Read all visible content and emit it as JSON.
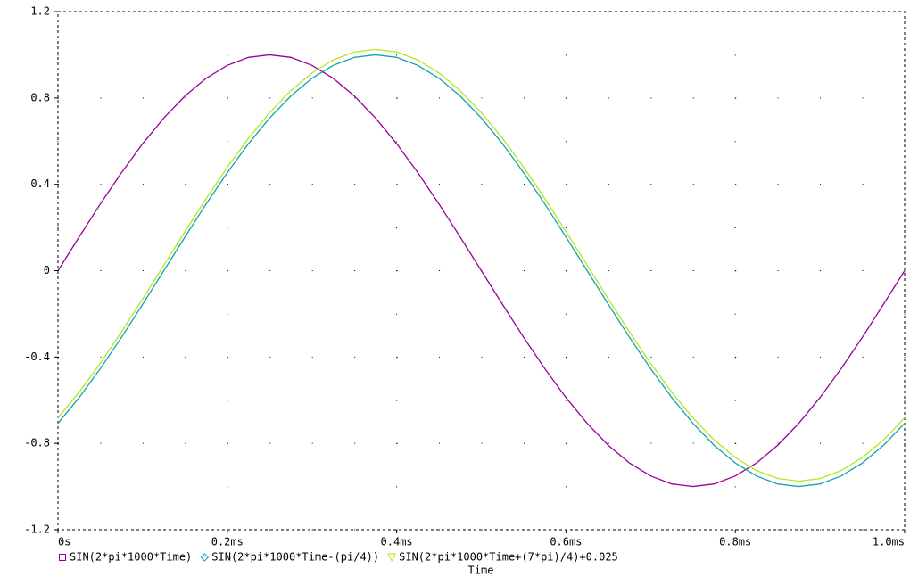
{
  "chart_data": {
    "type": "line",
    "xlabel": "Time",
    "x": [
      0,
      0.025,
      0.05,
      0.075,
      0.1,
      0.125,
      0.15,
      0.175,
      0.2,
      0.225,
      0.25,
      0.275,
      0.3,
      0.325,
      0.35,
      0.375,
      0.4,
      0.425,
      0.45,
      0.475,
      0.5,
      0.525,
      0.55,
      0.575,
      0.6,
      0.625,
      0.65,
      0.675,
      0.7,
      0.725,
      0.75,
      0.775,
      0.8,
      0.825,
      0.85,
      0.875,
      0.9,
      0.925,
      0.95,
      0.975,
      1
    ],
    "series": [
      {
        "name": "SIN(2*pi*1000*Time)",
        "color": "#990099",
        "marker": "square",
        "values": [
          0,
          0.156,
          0.309,
          0.454,
          0.588,
          0.707,
          0.809,
          0.891,
          0.951,
          0.988,
          1,
          0.988,
          0.951,
          0.891,
          0.809,
          0.707,
          0.588,
          0.454,
          0.309,
          0.156,
          0,
          -0.156,
          -0.309,
          -0.454,
          -0.588,
          -0.707,
          -0.809,
          -0.891,
          -0.951,
          -0.988,
          -1,
          -0.988,
          -0.951,
          -0.891,
          -0.809,
          -0.707,
          -0.588,
          -0.454,
          -0.309,
          -0.156,
          0
        ]
      },
      {
        "name": "SIN(2*pi*1000*Time-(pi/4))",
        "color": "#12a3b0",
        "marker": "diamond",
        "values": [
          -0.707,
          -0.588,
          -0.454,
          -0.309,
          -0.156,
          0,
          0.156,
          0.309,
          0.454,
          0.588,
          0.707,
          0.809,
          0.891,
          0.951,
          0.988,
          1,
          0.988,
          0.951,
          0.891,
          0.809,
          0.707,
          0.588,
          0.454,
          0.309,
          0.156,
          0,
          -0.156,
          -0.309,
          -0.454,
          -0.588,
          -0.707,
          -0.809,
          -0.891,
          -0.951,
          -0.988,
          -1,
          -0.988,
          -0.951,
          -0.891,
          -0.809,
          -0.707
        ]
      },
      {
        "name": "SIN(2*pi*1000*Time+(7*pi)/4)+0.025",
        "color": "#b4e61e",
        "marker": "triangle",
        "values": [
          -0.682,
          -0.563,
          -0.429,
          -0.284,
          -0.131,
          0.025,
          0.181,
          0.334,
          0.479,
          0.613,
          0.732,
          0.834,
          0.916,
          0.976,
          1.013,
          1.025,
          1.013,
          0.976,
          0.916,
          0.834,
          0.732,
          0.613,
          0.479,
          0.334,
          0.181,
          0.025,
          -0.131,
          -0.284,
          -0.429,
          -0.563,
          -0.682,
          -0.784,
          -0.866,
          -0.926,
          -0.963,
          -0.975,
          -0.963,
          -0.926,
          -0.866,
          -0.784,
          -0.682
        ]
      }
    ],
    "xlim": [
      0,
      1
    ],
    "xticks": [
      {
        "value": 0,
        "label": "0s"
      },
      {
        "value": 0.2,
        "label": "0.2ms"
      },
      {
        "value": 0.4,
        "label": "0.4ms"
      },
      {
        "value": 0.6,
        "label": "0.6ms"
      },
      {
        "value": 0.8,
        "label": "0.8ms"
      },
      {
        "value": 1,
        "label": "1.0ms"
      }
    ],
    "ylim": [
      -1.2,
      1.2
    ],
    "yticks": [
      -1.2,
      -0.8,
      -0.4,
      0,
      0.4,
      0.8,
      1.2
    ],
    "grid": true
  }
}
